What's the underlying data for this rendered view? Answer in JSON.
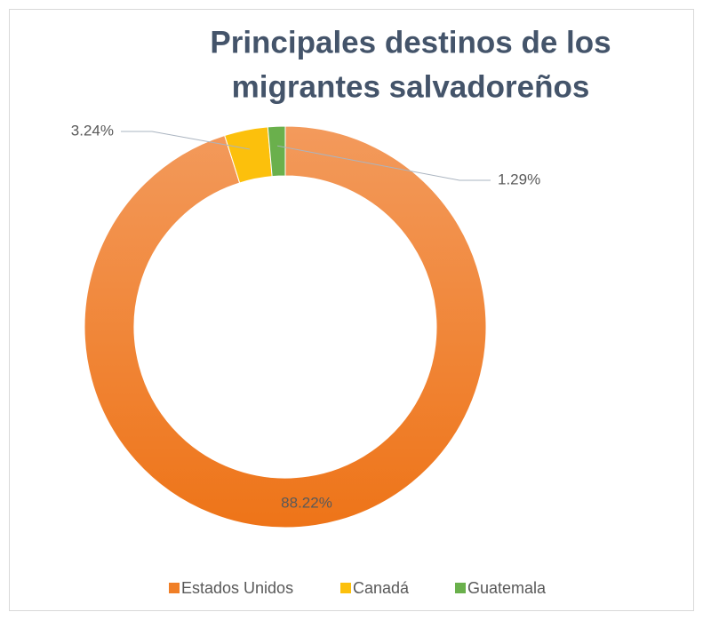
{
  "chart_data": {
    "type": "donut",
    "title": [
      "Principales destinos de los",
      "migrantes salvadoreños"
    ],
    "categories": [
      "Estados Unidos",
      "Canadá",
      "Guatemala"
    ],
    "values": [
      88.22,
      3.24,
      1.29
    ],
    "value_labels": [
      "88.22%",
      "3.24%",
      "1.29%"
    ],
    "colors": [
      "#f07f27",
      "#fcc00c",
      "#6ab04c"
    ],
    "legend": "bottom"
  }
}
